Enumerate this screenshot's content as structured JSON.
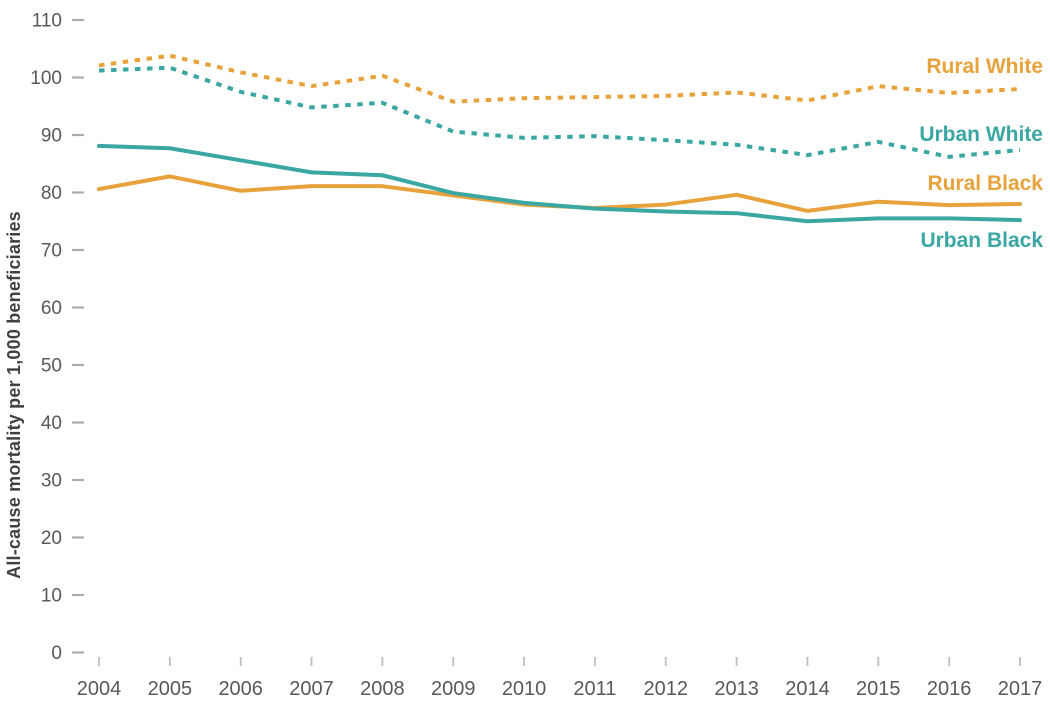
{
  "chart_data": {
    "type": "line",
    "title": "",
    "xlabel": "",
    "ylabel": "All-cause mortality per 1,000 beneficiaries",
    "x": [
      2004,
      2005,
      2006,
      2007,
      2008,
      2009,
      2010,
      2011,
      2012,
      2013,
      2014,
      2015,
      2016,
      2017
    ],
    "ylim": [
      0,
      110
    ],
    "ytick_step": 10,
    "grid": false,
    "legend_position": "inline-right-of-lines",
    "series": [
      {
        "name": "Rural White",
        "color": "#E8A23C",
        "line_style": "dotted",
        "values": [
          102.1,
          103.8,
          100.9,
          98.5,
          100.3,
          95.8,
          96.4,
          96.6,
          96.8,
          97.4,
          96.0,
          98.5,
          97.3,
          98.0
        ]
      },
      {
        "name": "Urban White",
        "color": "#3AA7A2",
        "line_style": "dotted",
        "values": [
          101.2,
          101.7,
          97.5,
          94.8,
          95.6,
          90.6,
          89.5,
          89.8,
          89.1,
          88.3,
          86.5,
          88.8,
          86.2,
          87.4
        ]
      },
      {
        "name": "Rural Black",
        "color": "#E8A23C",
        "line_style": "solid",
        "values": [
          80.6,
          82.8,
          80.3,
          81.1,
          81.1,
          79.5,
          77.9,
          77.3,
          77.9,
          79.6,
          76.8,
          78.4,
          77.8,
          78.0
        ]
      },
      {
        "name": "Urban Black",
        "color": "#3AA7A2",
        "line_style": "solid",
        "values": [
          88.1,
          87.7,
          85.6,
          83.5,
          83.0,
          79.9,
          78.2,
          77.2,
          76.7,
          76.4,
          75.0,
          75.5,
          75.5,
          75.2
        ]
      }
    ]
  },
  "y_axis": {
    "title": "All-cause mortality per 1,000 beneficiaries",
    "tick_labels": [
      "110",
      "100",
      "90",
      "80",
      "70",
      "60",
      "50",
      "40",
      "30",
      "20",
      "10",
      "0"
    ]
  },
  "x_axis": {
    "tick_labels": [
      "2004",
      "2005",
      "2006",
      "2007",
      "2008",
      "2009",
      "2010",
      "2011",
      "2012",
      "2013",
      "2014",
      "2015",
      "2016",
      "2017"
    ]
  },
  "colors": {
    "orange": "#E8A23C",
    "teal": "#3AA7A2",
    "axis_text": "#58595B",
    "axis_title_text": "#3F4042",
    "y_tick_dash": "#ABACAE",
    "x_tick_mark": "#BDBEC0"
  }
}
